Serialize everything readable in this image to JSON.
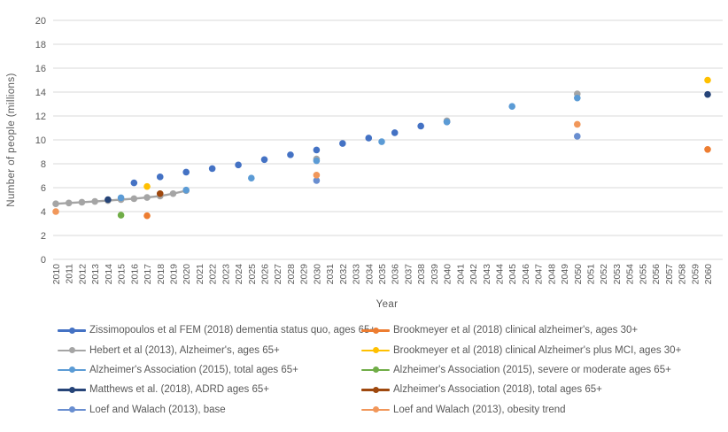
{
  "chart_data": {
    "type": "scatter",
    "title": "",
    "xlabel": "Year",
    "ylabel": "Number of people (millions)",
    "xlim": [
      2010,
      2060
    ],
    "ylim": [
      0,
      20
    ],
    "y_tick_step": 2,
    "y_ticks": [
      0,
      2,
      4,
      6,
      8,
      10,
      12,
      14,
      16,
      18,
      20
    ],
    "x_ticks": [
      2010,
      2011,
      2012,
      2013,
      2014,
      2015,
      2016,
      2017,
      2018,
      2019,
      2020,
      2021,
      2022,
      2023,
      2024,
      2025,
      2026,
      2027,
      2028,
      2029,
      2030,
      2031,
      2032,
      2033,
      2034,
      2035,
      2036,
      2037,
      2038,
      2039,
      2040,
      2041,
      2042,
      2043,
      2044,
      2045,
      2046,
      2047,
      2048,
      2049,
      2050,
      2051,
      2052,
      2053,
      2054,
      2055,
      2056,
      2057,
      2058,
      2059,
      2060
    ],
    "grid": true,
    "gridline_color": "#d9d9d9",
    "legend_position": "bottom",
    "legend_columns": 2,
    "series": [
      {
        "name": "Zissimopoulos et al FEM (2018) dementia status quo, ages 65+",
        "color": "#4472C4",
        "line": false,
        "points": [
          [
            2016,
            6.4
          ],
          [
            2018,
            6.9
          ],
          [
            2020,
            7.3
          ],
          [
            2022,
            7.6
          ],
          [
            2024,
            7.9
          ],
          [
            2026,
            8.35
          ],
          [
            2028,
            8.75
          ],
          [
            2030,
            9.15
          ],
          [
            2032,
            9.7
          ],
          [
            2034,
            10.15
          ],
          [
            2036,
            10.6
          ],
          [
            2038,
            11.15
          ],
          [
            2040,
            11.5
          ]
        ]
      },
      {
        "name": "Brookmeyer et al (2018) clinical alzheimer's, ages 30+",
        "color": "#ED7D31",
        "line": false,
        "points": [
          [
            2017,
            3.65
          ],
          [
            2060,
            9.2
          ]
        ]
      },
      {
        "name": "Hebert et al (2013), Alzheimer's, ages 65+",
        "color": "#A5A5A5",
        "line": true,
        "line_points": [
          [
            2010,
            4.65
          ],
          [
            2011,
            4.72
          ],
          [
            2012,
            4.78
          ],
          [
            2013,
            4.85
          ],
          [
            2014,
            4.92
          ],
          [
            2015,
            5.0
          ],
          [
            2016,
            5.08
          ],
          [
            2017,
            5.18
          ],
          [
            2018,
            5.3
          ],
          [
            2019,
            5.5
          ],
          [
            2020,
            5.75
          ]
        ],
        "points": [
          [
            2010,
            4.65
          ],
          [
            2011,
            4.72
          ],
          [
            2012,
            4.78
          ],
          [
            2013,
            4.85
          ],
          [
            2014,
            4.92
          ],
          [
            2015,
            5.0
          ],
          [
            2016,
            5.08
          ],
          [
            2017,
            5.18
          ],
          [
            2018,
            5.3
          ],
          [
            2019,
            5.5
          ],
          [
            2020,
            5.75
          ],
          [
            2030,
            8.4
          ],
          [
            2040,
            11.6
          ],
          [
            2050,
            13.85
          ]
        ]
      },
      {
        "name": "Brookmeyer et al (2018) clinical Alzheimer's plus MCI, ages 30+",
        "color": "#FFC000",
        "line": false,
        "points": [
          [
            2017,
            6.1
          ],
          [
            2060,
            15.0
          ]
        ]
      },
      {
        "name": "Alzheimer's Association (2015), total ages 65+",
        "color": "#5B9BD5",
        "line": false,
        "points": [
          [
            2015,
            5.15
          ],
          [
            2020,
            5.8
          ],
          [
            2025,
            6.8
          ],
          [
            2030,
            8.25
          ],
          [
            2035,
            9.85
          ],
          [
            2040,
            11.5
          ],
          [
            2045,
            12.8
          ],
          [
            2050,
            13.5
          ]
        ]
      },
      {
        "name": "Alzheimer's Association (2015), severe or moderate ages 65+",
        "color": "#70AD47",
        "line": false,
        "points": [
          [
            2015,
            3.7
          ]
        ]
      },
      {
        "name": "Matthews et al. (2018), ADRD ages 65+",
        "color": "#264478",
        "line": false,
        "points": [
          [
            2014,
            5.0
          ],
          [
            2060,
            13.8
          ]
        ]
      },
      {
        "name": "Alzheimer's Association (2018), total ages 65+",
        "color": "#9E480E",
        "line": false,
        "points": [
          [
            2018,
            5.5
          ]
        ]
      },
      {
        "name": "Loef and Walach (2013), base",
        "color": "#698ED0",
        "line": false,
        "points": [
          [
            2030,
            6.6
          ],
          [
            2050,
            10.3
          ]
        ]
      },
      {
        "name": "Loef and Walach (2013), obesity trend",
        "color": "#F1975A",
        "line": false,
        "points": [
          [
            2010,
            4.0
          ],
          [
            2030,
            7.05
          ],
          [
            2050,
            11.3
          ]
        ]
      }
    ]
  }
}
